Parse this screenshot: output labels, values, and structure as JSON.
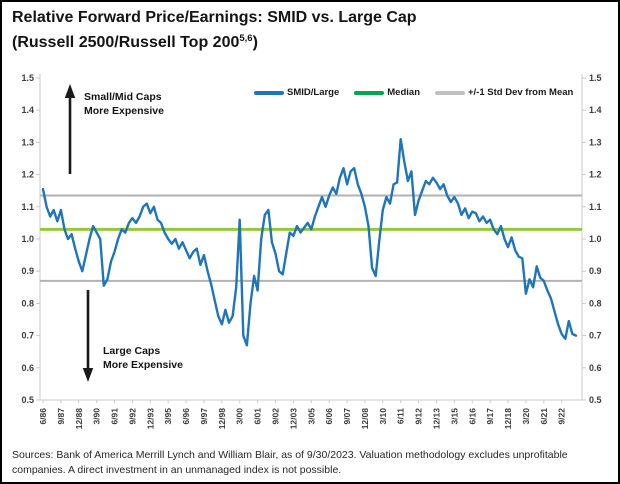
{
  "header": {
    "title_line1": "Relative Forward Price/Earnings: SMID vs. Large Cap",
    "title_line2_main": "(Russell 2500/Russell Top 200",
    "title_line2_sup": "5,6",
    "title_line2_close": ")"
  },
  "legend": [
    {
      "label": "SMID/Large",
      "color": "#1F75BC"
    },
    {
      "label": "Median",
      "color": "#00A651"
    },
    {
      "label": "+/-1 Std Dev from Mean",
      "color": "#BFBFBF"
    }
  ],
  "annotations": {
    "top_line1": "Small/Mid Caps",
    "top_line2": "More Expensive",
    "bottom_line1": "Large Caps",
    "bottom_line2": "More Expensive"
  },
  "footer": {
    "sources": "Sources: Bank of America Merrill Lynch and William Blair, as of 9/30/2023. Valuation methodology excludes unprofitable companies. A direct investment in an unmanaged index is not possible."
  },
  "colors": {
    "series_blue": "#1F75BC",
    "median_green": "#96C83C",
    "std_dev_gray": "#B2B2B2",
    "axis_gray": "#C9C9C9",
    "tick_text": "#3C3C3C",
    "arrow_black": "#1A1A1A"
  },
  "chart_data": {
    "type": "line",
    "title": "Relative Forward Price/Earnings: SMID vs. Large Cap (Russell 2500/Russell Top 200 5,6)",
    "frequency": "quarterly",
    "start_label": "6/86",
    "end_label": "9/23",
    "x_tick_labels": [
      "6/86",
      "9/87",
      "12/88",
      "3/90",
      "6/91",
      "9/92",
      "12/93",
      "3/95",
      "6/96",
      "9/97",
      "12/98",
      "3/00",
      "6/01",
      "9/02",
      "12/03",
      "3/05",
      "6/06",
      "9/07",
      "12/08",
      "3/10",
      "6/11",
      "9/12",
      "12/13",
      "3/15",
      "6/16",
      "9/17",
      "12/18",
      "3/20",
      "6/21",
      "9/22"
    ],
    "x_tick_every_n_points": 5,
    "ylim": [
      0.5,
      1.5
    ],
    "y_ticks": [
      1.5,
      1.4,
      1.3,
      1.2,
      1.1,
      1.0,
      0.9,
      0.8,
      0.7,
      0.6,
      0.5
    ],
    "y_axis_sides": [
      "left",
      "right"
    ],
    "grid": false,
    "legend_position": "top",
    "series": [
      {
        "name": "SMID/Large",
        "color": "#1F75BC",
        "values": [
          1.155,
          1.1,
          1.07,
          1.09,
          1.055,
          1.09,
          1.03,
          1.0,
          1.015,
          0.97,
          0.93,
          0.9,
          0.95,
          1.0,
          1.04,
          1.02,
          1.0,
          0.855,
          0.875,
          0.93,
          0.96,
          1.0,
          1.03,
          1.02,
          1.05,
          1.065,
          1.05,
          1.07,
          1.1,
          1.11,
          1.08,
          1.1,
          1.06,
          1.05,
          1.02,
          1.0,
          0.985,
          1.0,
          0.97,
          0.99,
          0.965,
          0.94,
          0.96,
          0.97,
          0.92,
          0.95,
          0.9,
          0.86,
          0.81,
          0.76,
          0.735,
          0.78,
          0.74,
          0.76,
          0.85,
          1.06,
          0.7,
          0.67,
          0.8,
          0.885,
          0.84,
          1.0,
          1.075,
          1.09,
          0.99,
          0.955,
          0.9,
          0.89,
          0.955,
          1.02,
          1.01,
          1.04,
          1.02,
          1.035,
          1.05,
          1.03,
          1.07,
          1.1,
          1.13,
          1.1,
          1.135,
          1.16,
          1.14,
          1.19,
          1.22,
          1.17,
          1.21,
          1.22,
          1.17,
          1.14,
          1.1,
          1.04,
          0.91,
          0.885,
          0.995,
          1.09,
          1.13,
          1.11,
          1.17,
          1.175,
          1.31,
          1.24,
          1.18,
          1.21,
          1.075,
          1.12,
          1.15,
          1.18,
          1.17,
          1.19,
          1.175,
          1.155,
          1.17,
          1.135,
          1.115,
          1.13,
          1.11,
          1.075,
          1.095,
          1.065,
          1.085,
          1.08,
          1.055,
          1.07,
          1.05,
          1.06,
          1.03,
          1.015,
          1.04,
          1.0,
          0.975,
          1.005,
          0.965,
          0.945,
          0.94,
          0.83,
          0.875,
          0.85,
          0.915,
          0.88,
          0.87,
          0.84,
          0.815,
          0.775,
          0.735,
          0.705,
          0.69,
          0.745,
          0.705,
          0.7
        ]
      }
    ],
    "reference_lines": [
      {
        "name": "Median",
        "value": 1.03,
        "color": "#96C83C"
      },
      {
        "name": "+1 Std Dev from Mean",
        "value": 1.135,
        "color": "#B2B2B2"
      },
      {
        "name": "-1 Std Dev from Mean",
        "value": 0.87,
        "color": "#B2B2B2"
      }
    ]
  }
}
